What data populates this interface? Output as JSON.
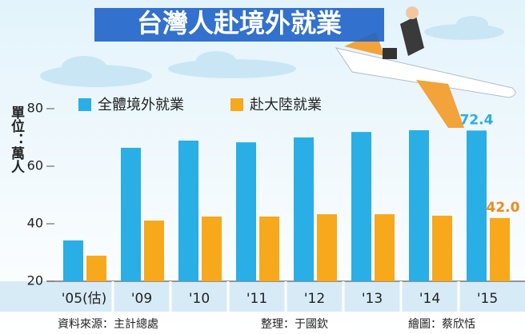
{
  "chart_data": {
    "type": "bar",
    "title": "台灣人赴境外就業",
    "y_label": "單位：萬人",
    "categories": [
      "'05(估)",
      "'09",
      "'10",
      "'11",
      "'12",
      "'13",
      "'14",
      "'15"
    ],
    "series": [
      {
        "name": "全體境外就業",
        "color": "#29aee6",
        "values": [
          34.2,
          66.4,
          68.9,
          68.3,
          70.0,
          71.9,
          72.5,
          72.4
        ],
        "value_labels": [
          null,
          null,
          null,
          null,
          null,
          null,
          null,
          "72.4"
        ],
        "label_color": "#29aee6"
      },
      {
        "name": "赴大陸就業",
        "color": "#f7a81b",
        "values": [
          28.9,
          41.1,
          42.5,
          42.5,
          43.3,
          43.3,
          42.8,
          42.0
        ],
        "value_labels": [
          null,
          null,
          null,
          null,
          null,
          null,
          null,
          "42.0"
        ],
        "label_color": "#f08a1c"
      }
    ],
    "ylim": [
      20,
      80
    ],
    "yticks": [
      20,
      40,
      60,
      80
    ],
    "footer": [
      "資料來源：主計總處",
      "整理：于國欽",
      "繪圖：蔡欣恬"
    ]
  }
}
